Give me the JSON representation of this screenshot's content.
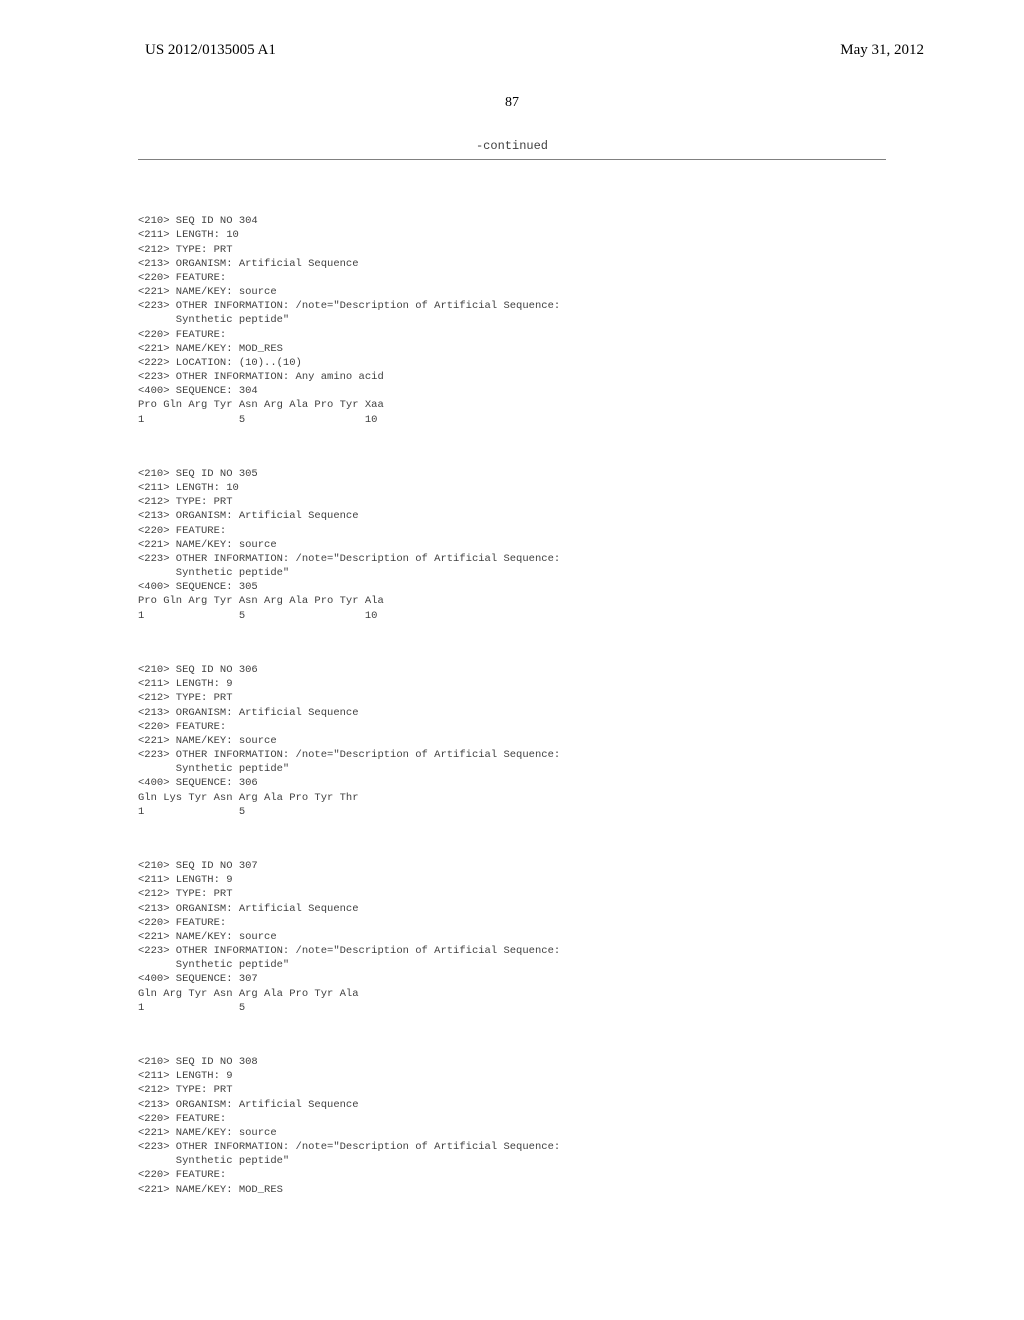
{
  "header": {
    "publication_number": "US 2012/0135005 A1",
    "publication_date": "May 31, 2012"
  },
  "page_number": "87",
  "continued_label": "-continued",
  "sequences": [
    {
      "id": "304",
      "lines": [
        "<210> SEQ ID NO 304",
        "<211> LENGTH: 10",
        "<212> TYPE: PRT",
        "<213> ORGANISM: Artificial Sequence",
        "<220> FEATURE:",
        "<221> NAME/KEY: source",
        "<223> OTHER INFORMATION: /note=\"Description of Artificial Sequence:",
        "      Synthetic peptide\"",
        "<220> FEATURE:",
        "<221> NAME/KEY: MOD_RES",
        "<222> LOCATION: (10)..(10)",
        "<223> OTHER INFORMATION: Any amino acid",
        "",
        "<400> SEQUENCE: 304",
        "",
        "Pro Gln Arg Tyr Asn Arg Ala Pro Tyr Xaa",
        "1               5                   10"
      ]
    },
    {
      "id": "305",
      "lines": [
        "<210> SEQ ID NO 305",
        "<211> LENGTH: 10",
        "<212> TYPE: PRT",
        "<213> ORGANISM: Artificial Sequence",
        "<220> FEATURE:",
        "<221> NAME/KEY: source",
        "<223> OTHER INFORMATION: /note=\"Description of Artificial Sequence:",
        "      Synthetic peptide\"",
        "",
        "<400> SEQUENCE: 305",
        "",
        "Pro Gln Arg Tyr Asn Arg Ala Pro Tyr Ala",
        "1               5                   10"
      ]
    },
    {
      "id": "306",
      "lines": [
        "<210> SEQ ID NO 306",
        "<211> LENGTH: 9",
        "<212> TYPE: PRT",
        "<213> ORGANISM: Artificial Sequence",
        "<220> FEATURE:",
        "<221> NAME/KEY: source",
        "<223> OTHER INFORMATION: /note=\"Description of Artificial Sequence:",
        "      Synthetic peptide\"",
        "",
        "<400> SEQUENCE: 306",
        "",
        "Gln Lys Tyr Asn Arg Ala Pro Tyr Thr",
        "1               5"
      ]
    },
    {
      "id": "307",
      "lines": [
        "<210> SEQ ID NO 307",
        "<211> LENGTH: 9",
        "<212> TYPE: PRT",
        "<213> ORGANISM: Artificial Sequence",
        "<220> FEATURE:",
        "<221> NAME/KEY: source",
        "<223> OTHER INFORMATION: /note=\"Description of Artificial Sequence:",
        "      Synthetic peptide\"",
        "",
        "<400> SEQUENCE: 307",
        "",
        "Gln Arg Tyr Asn Arg Ala Pro Tyr Ala",
        "1               5"
      ]
    },
    {
      "id": "308",
      "lines": [
        "<210> SEQ ID NO 308",
        "<211> LENGTH: 9",
        "<212> TYPE: PRT",
        "<213> ORGANISM: Artificial Sequence",
        "<220> FEATURE:",
        "<221> NAME/KEY: source",
        "<223> OTHER INFORMATION: /note=\"Description of Artificial Sequence:",
        "      Synthetic peptide\"",
        "<220> FEATURE:",
        "<221> NAME/KEY: MOD_RES"
      ]
    }
  ],
  "styling": {
    "background_color": "#ffffff",
    "header_font_size": 15,
    "page_number_font_size": 14,
    "mono_font_size": 10.5,
    "text_color": "#404040",
    "header_color": "#000000",
    "divider_color": "#808080"
  }
}
